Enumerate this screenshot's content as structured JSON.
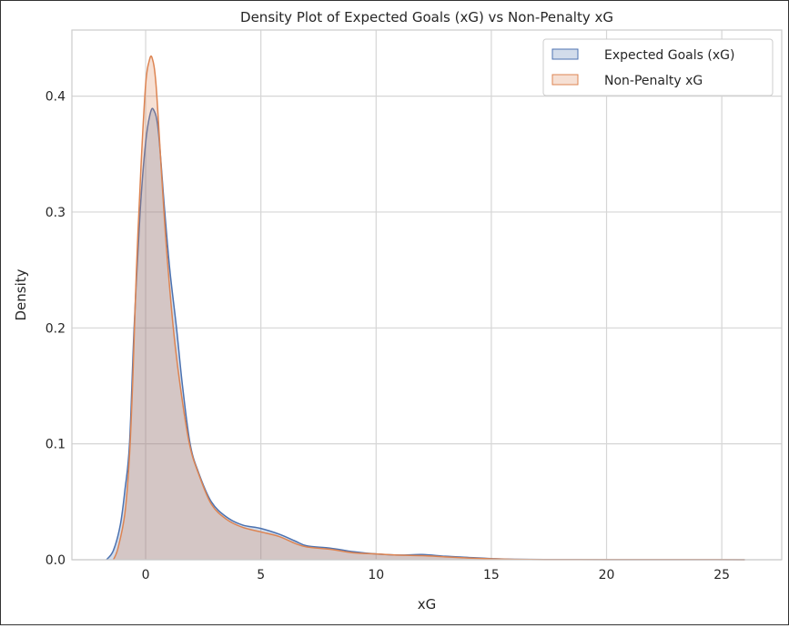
{
  "chart_data": {
    "type": "area",
    "title": "Density Plot of Expected Goals (xG) vs Non-Penalty xG",
    "xlabel": "xG",
    "ylabel": "Density",
    "xlim": [
      -3.2,
      27.6
    ],
    "ylim": [
      0,
      0.457
    ],
    "xticks": [
      0,
      5,
      10,
      15,
      20,
      25
    ],
    "yticks": [
      0.0,
      0.1,
      0.2,
      0.3,
      0.4
    ],
    "ytick_labels": [
      "0.0",
      "0.1",
      "0.2",
      "0.3",
      "0.4"
    ],
    "grid": true,
    "legend_position": "top-right",
    "series": [
      {
        "name": "Expected Goals (xG)",
        "color": "#4c72b0",
        "x": [
          -1.7,
          -1.4,
          -1.1,
          -0.9,
          -0.7,
          -0.5,
          -0.24,
          0,
          0.2,
          0.35,
          0.55,
          0.83,
          1.05,
          1.34,
          1.6,
          1.93,
          2.3,
          2.85,
          3.5,
          4.2,
          5,
          5.8,
          6.5,
          7,
          8,
          9,
          10,
          11,
          12,
          13,
          14,
          15,
          16,
          18,
          20,
          22,
          24,
          26
        ],
        "y": [
          0,
          0.008,
          0.03,
          0.06,
          0.1,
          0.2,
          0.3,
          0.36,
          0.385,
          0.388,
          0.37,
          0.3,
          0.25,
          0.2,
          0.15,
          0.1,
          0.075,
          0.05,
          0.037,
          0.03,
          0.027,
          0.022,
          0.016,
          0.012,
          0.01,
          0.007,
          0.005,
          0.004,
          0.0045,
          0.003,
          0.002,
          0.001,
          0.0004,
          0.0002,
          0.0001,
          0.0001,
          0.0001,
          0
        ]
      },
      {
        "name": "Non-Penalty xG",
        "color": "#dd8452",
        "x": [
          -1.4,
          -1.2,
          -0.9,
          -0.7,
          -0.55,
          -0.4,
          -0.2,
          0,
          0.15,
          0.28,
          0.45,
          0.7,
          0.9,
          1.2,
          1.5,
          1.9,
          2.3,
          2.85,
          3.5,
          4.2,
          5,
          5.8,
          6.5,
          7,
          8,
          9,
          10,
          11,
          12,
          13,
          14,
          15,
          16,
          18,
          20,
          22,
          24,
          26
        ],
        "y": [
          0,
          0.01,
          0.04,
          0.09,
          0.16,
          0.25,
          0.34,
          0.41,
          0.43,
          0.433,
          0.41,
          0.33,
          0.27,
          0.2,
          0.15,
          0.1,
          0.074,
          0.048,
          0.035,
          0.028,
          0.024,
          0.02,
          0.014,
          0.011,
          0.009,
          0.006,
          0.005,
          0.004,
          0.0035,
          0.0025,
          0.0015,
          0.0008,
          0.0003,
          0.0001,
          0.0001,
          0.0001,
          0.0001,
          0
        ]
      }
    ]
  }
}
